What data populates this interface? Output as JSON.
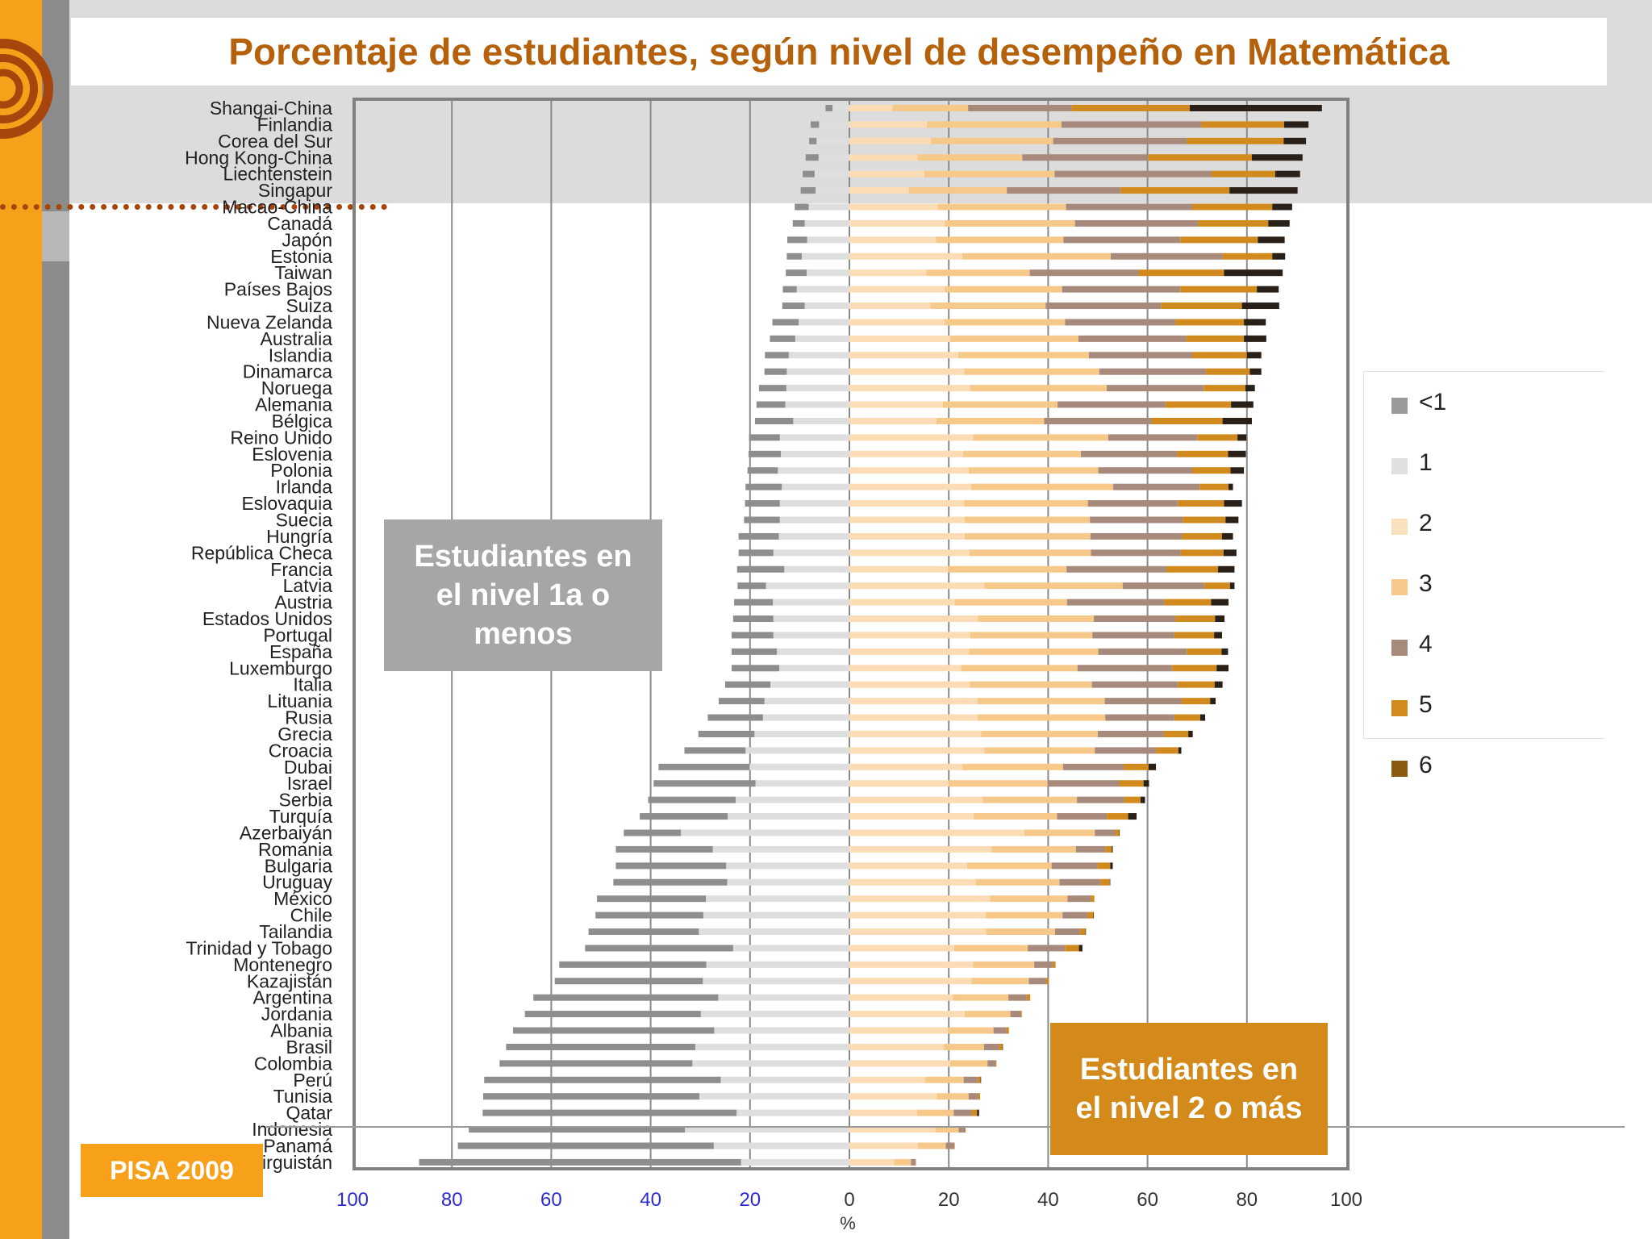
{
  "chart_data": {
    "type": "bar",
    "subtype": "diverging-stacked-horizontal",
    "title": "Porcentaje de estudiantes, según nivel de desempeño en Matemática",
    "xlabel": "%",
    "xlim": [
      -100,
      100
    ],
    "x_ticks": [
      {
        "value": -100,
        "label": "100"
      },
      {
        "value": -80,
        "label": "80"
      },
      {
        "value": -60,
        "label": "60"
      },
      {
        "value": -40,
        "label": "40"
      },
      {
        "value": -20,
        "label": "20"
      },
      {
        "value": 0,
        "label": "0"
      },
      {
        "value": 20,
        "label": "20"
      },
      {
        "value": 40,
        "label": "40"
      },
      {
        "value": 60,
        "label": "60"
      },
      {
        "value": 80,
        "label": "80"
      },
      {
        "value": 100,
        "label": "100"
      }
    ],
    "legend_position": "right",
    "grid": true,
    "levels_below": [
      "<1",
      "1"
    ],
    "levels_above": [
      "2",
      "3",
      "4",
      "5",
      "6"
    ],
    "series": [
      {
        "name": "<1",
        "color": "#8e8e8e"
      },
      {
        "name": "1",
        "color": "#dedede"
      },
      {
        "name": "2",
        "color": "#fbdcb4"
      },
      {
        "name": "3",
        "color": "#f6c98a"
      },
      {
        "name": "4",
        "color": "#a88a7c"
      },
      {
        "name": "5",
        "color": "#d18a1e"
      },
      {
        "name": "6",
        "color": "#2a2018"
      }
    ],
    "categories": [
      "Shangai-China",
      "Finlandia",
      "Corea del Sur",
      "Hong Kong-China",
      "Liechtenstein",
      "Singapur",
      "Macao-China",
      "Canadá",
      "Japón",
      "Estonia",
      "Taiwan",
      "Países Bajos",
      "Suiza",
      "Nueva Zelanda",
      "Australia",
      "Islandia",
      "Dinamarca",
      "Noruega",
      "Alemania",
      "Bélgica",
      "Reino Unido",
      "Eslovenia",
      "Polonia",
      "Irlanda",
      "Eslovaquia",
      "Suecia",
      "Hungría",
      "República Checa",
      "Francia",
      "Latvia",
      "Austria",
      "Estados Unidos",
      "Portugal",
      "España",
      "Luxemburgo",
      "Italia",
      "Lituania",
      "Rusia",
      "Grecia",
      "Croacia",
      "Dubai",
      "Israel",
      "Serbia",
      "Turquía",
      "Azerbaiyán",
      "Romania",
      "Bulgaria",
      "Uruguay",
      "México",
      "Chile",
      "Tailandia",
      "Trinidad y Tobago",
      "Montenegro",
      "Kazajistán",
      "Argentina",
      "Jordania",
      "Albania",
      "Brasil",
      "Colombia",
      "Perú",
      "Tunisia",
      "Qatar",
      "Indonesia",
      "Panamá",
      "Kirguistán"
    ],
    "values": [
      [
        1.4,
        3.4,
        8.7,
        15.2,
        20.8,
        23.8,
        26.6
      ],
      [
        1.7,
        6.1,
        15.6,
        27.1,
        28.1,
        16.7,
        4.9
      ],
      [
        1.5,
        6.6,
        16.4,
        24.6,
        26.9,
        19.5,
        4.5
      ],
      [
        2.6,
        6.2,
        13.7,
        21.1,
        25.4,
        20.8,
        10.2
      ],
      [
        2.4,
        7.0,
        15.1,
        26.2,
        31.6,
        12.8,
        5.0
      ],
      [
        3.0,
        6.8,
        12.0,
        19.7,
        22.8,
        22.0,
        13.7
      ],
      [
        2.8,
        8.2,
        17.8,
        25.8,
        25.4,
        16.1,
        4.0
      ],
      [
        2.4,
        9.0,
        19.2,
        26.2,
        24.8,
        14.1,
        4.3
      ],
      [
        4.0,
        8.5,
        17.4,
        25.7,
        23.5,
        15.6,
        5.4
      ],
      [
        3.0,
        9.6,
        22.7,
        29.9,
        22.5,
        10.0,
        2.6
      ],
      [
        4.2,
        8.6,
        15.5,
        20.8,
        21.9,
        17.2,
        11.8
      ],
      [
        2.8,
        10.6,
        19.2,
        23.6,
        23.8,
        15.4,
        4.4
      ],
      [
        4.5,
        9.0,
        16.3,
        23.2,
        23.2,
        16.3,
        7.5
      ],
      [
        5.3,
        10.2,
        19.1,
        24.3,
        22.2,
        13.8,
        4.4
      ],
      [
        5.1,
        10.9,
        20.3,
        25.8,
        21.7,
        11.6,
        4.5
      ],
      [
        4.8,
        12.2,
        21.9,
        26.3,
        20.8,
        11.0,
        2.9
      ],
      [
        4.5,
        12.6,
        23.1,
        27.2,
        21.4,
        8.9,
        2.3
      ],
      [
        5.5,
        12.7,
        24.3,
        27.5,
        19.5,
        8.4,
        1.9
      ],
      [
        5.8,
        12.9,
        18.8,
        23.1,
        21.7,
        13.2,
        4.5
      ],
      [
        7.7,
        11.3,
        17.5,
        21.7,
        21.6,
        14.3,
        5.9
      ],
      [
        6.2,
        14.0,
        24.9,
        27.2,
        17.9,
        8.1,
        1.8
      ],
      [
        6.5,
        13.8,
        22.9,
        23.7,
        19.3,
        10.3,
        3.6
      ],
      [
        6.1,
        14.4,
        24.0,
        26.1,
        18.9,
        7.7,
        2.7
      ],
      [
        7.3,
        13.6,
        24.5,
        28.6,
        17.4,
        5.8,
        0.9
      ],
      [
        7.0,
        14.0,
        23.1,
        24.9,
        18.1,
        9.3,
        3.6
      ],
      [
        7.2,
        14.0,
        23.2,
        25.2,
        18.7,
        8.6,
        2.6
      ],
      [
        8.1,
        14.2,
        23.2,
        25.3,
        18.4,
        8.1,
        2.2
      ],
      [
        7.0,
        15.3,
        24.2,
        24.4,
        18.1,
        8.6,
        2.6
      ],
      [
        9.5,
        13.1,
        19.9,
        23.8,
        20.1,
        10.4,
        3.3
      ],
      [
        5.7,
        16.8,
        27.2,
        27.8,
        16.4,
        5.2,
        0.9
      ],
      [
        7.8,
        15.4,
        21.2,
        22.6,
        19.6,
        9.4,
        3.5
      ],
      [
        8.1,
        15.3,
        25.9,
        23.3,
        16.4,
        8.0,
        1.9
      ],
      [
        8.4,
        15.3,
        24.3,
        24.6,
        16.5,
        8.0,
        1.6
      ],
      [
        9.1,
        14.6,
        24.1,
        26.0,
        17.8,
        7.0,
        1.3
      ],
      [
        9.6,
        14.1,
        22.5,
        23.4,
        19.0,
        9.0,
        2.4
      ],
      [
        9.1,
        15.9,
        24.2,
        24.6,
        17.3,
        7.4,
        1.6
      ],
      [
        9.2,
        17.1,
        25.8,
        25.6,
        15.4,
        5.8,
        1.1
      ],
      [
        11.1,
        17.4,
        25.8,
        25.7,
        13.9,
        5.2,
        1.0
      ],
      [
        11.3,
        19.1,
        26.5,
        23.5,
        13.3,
        4.9,
        0.9
      ],
      [
        12.3,
        20.9,
        27.2,
        22.2,
        12.3,
        4.5,
        0.6
      ],
      [
        18.3,
        20.1,
        22.7,
        20.3,
        12.2,
        5.0,
        1.5
      ],
      [
        20.5,
        18.9,
        20.0,
        19.9,
        14.4,
        4.9,
        1.1
      ],
      [
        17.6,
        22.9,
        26.8,
        19.0,
        9.5,
        3.3,
        0.9
      ],
      [
        17.7,
        24.5,
        25.0,
        16.8,
        10.0,
        4.3,
        1.7
      ],
      [
        11.5,
        33.9,
        35.2,
        14.2,
        4.1,
        0.8,
        0.1
      ],
      [
        19.5,
        27.5,
        28.6,
        17.0,
        5.9,
        1.3,
        0.2
      ],
      [
        22.2,
        24.8,
        23.7,
        17.0,
        9.2,
        2.6,
        0.5
      ],
      [
        22.9,
        24.6,
        25.4,
        16.9,
        8.2,
        1.9,
        0.1
      ],
      [
        21.9,
        28.9,
        28.3,
        15.6,
        4.7,
        0.7,
        0.0
      ],
      [
        21.7,
        29.4,
        27.4,
        15.5,
        5.0,
        1.2,
        0.1
      ],
      [
        22.2,
        30.3,
        27.5,
        13.9,
        5.0,
        1.1,
        0.1
      ],
      [
        29.8,
        23.4,
        21.1,
        14.8,
        7.5,
        2.8,
        0.7
      ],
      [
        29.6,
        28.8,
        24.9,
        12.3,
        3.7,
        0.6,
        0.0
      ],
      [
        29.8,
        29.5,
        24.6,
        11.5,
        3.5,
        0.5,
        0.0
      ],
      [
        37.2,
        26.4,
        20.8,
        11.2,
        3.7,
        0.7,
        0.0
      ],
      [
        35.4,
        29.9,
        23.2,
        9.2,
        2.1,
        0.2,
        0.0
      ],
      [
        40.5,
        27.2,
        19.8,
        9.2,
        2.6,
        0.5,
        0.0
      ],
      [
        38.1,
        31.0,
        19.0,
        8.1,
        3.0,
        0.7,
        0.1
      ],
      [
        38.8,
        31.6,
        20.3,
        7.5,
        1.7,
        0.1,
        0.0
      ],
      [
        47.6,
        25.9,
        15.2,
        7.8,
        2.8,
        0.6,
        0.1
      ],
      [
        43.5,
        30.2,
        17.6,
        6.4,
        1.9,
        0.4,
        0.0
      ],
      [
        51.1,
        22.7,
        13.6,
        7.4,
        3.6,
        1.1,
        0.4
      ],
      [
        43.5,
        33.1,
        17.3,
        4.7,
        1.3,
        0.1,
        0.0
      ],
      [
        51.5,
        27.3,
        13.8,
        5.6,
        1.7,
        0.1,
        0.0
      ],
      [
        64.8,
        21.8,
        9.0,
        3.4,
        0.9,
        0.1,
        0.0
      ]
    ],
    "annotations": [
      "Estudiantes en\nel nivel 1a o\nmenos",
      "Estudiantes en\nel nivel 2 o más"
    ]
  },
  "legend": [
    {
      "label": "<1",
      "color": "#9a9a9a"
    },
    {
      "label": "1",
      "color": "#e0e0e0"
    },
    {
      "label": "2",
      "color": "#fbe0bd"
    },
    {
      "label": "3",
      "color": "#f6c98a"
    },
    {
      "label": "4",
      "color": "#a88a7c"
    },
    {
      "label": "5",
      "color": "#d18a1e"
    },
    {
      "label": "6",
      "color": "#8a5a12"
    }
  ],
  "badge": "PISA 2009",
  "colors": {
    "accent": "#f7a11a",
    "title": "#b5600a",
    "tick_left": "#2b2bcf"
  }
}
